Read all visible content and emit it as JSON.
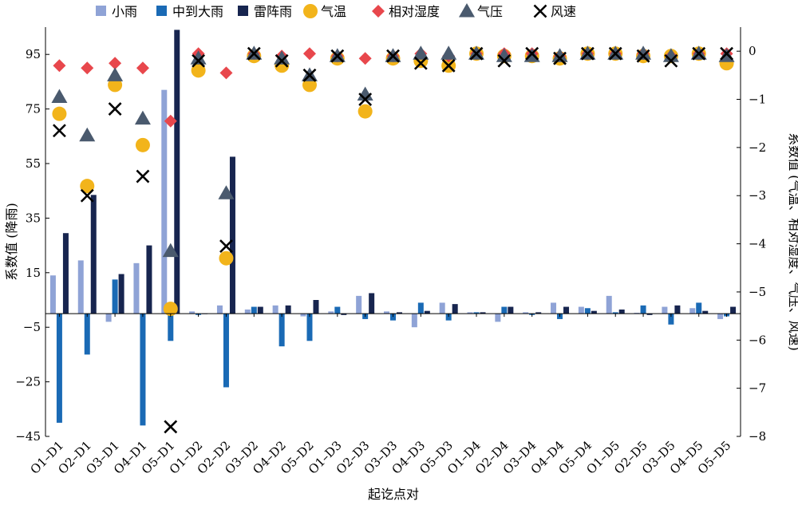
{
  "chart_data": {
    "type": "bar",
    "xlabel": "起讫点对",
    "ylabel_left": "系数值 (降雨)",
    "ylabel_right": "系数值 (气温、相对湿度、气压、风速)",
    "ylim_left": [
      -45,
      105
    ],
    "ylim_right": [
      -8,
      0.5
    ],
    "yticks_left": [
      -45,
      -25,
      -5,
      15,
      35,
      55,
      75,
      95
    ],
    "yticks_right": [
      -8,
      -7,
      -6,
      -5,
      -4,
      -3,
      -2,
      -1,
      0
    ],
    "yticks_left_labels": [
      "−45",
      "−25",
      "−5",
      "15",
      "35",
      "55",
      "75",
      "95"
    ],
    "yticks_right_labels": [
      "−8",
      "−7",
      "−6",
      "−5",
      "−4",
      "−3",
      "−2",
      "−1",
      "0"
    ],
    "legend_position": "top",
    "grid": false,
    "categories": [
      "O1–D1",
      "O2–D1",
      "O3–D1",
      "O4–D1",
      "O5–D1",
      "O1–D2",
      "O2–D2",
      "O3–D2",
      "O4–D2",
      "O5–D2",
      "O1–D3",
      "O2–D3",
      "O3–D3",
      "O4–D3",
      "O5–D3",
      "O1–D4",
      "O2–D4",
      "O3–D4",
      "O4–D4",
      "O5–D4",
      "O1–D5",
      "O2–D5",
      "O3–D5",
      "O4–D5",
      "O5–D5"
    ],
    "bar_series": [
      {
        "name": "小雨",
        "color": "#8fa3d6",
        "axis": "left",
        "values": [
          14,
          19.5,
          -3,
          18.5,
          82,
          0.8,
          3,
          1.5,
          3,
          -1,
          0.8,
          6.5,
          0.8,
          -5,
          4,
          0.5,
          -3,
          0.5,
          4,
          2.5,
          6.5,
          0.3,
          2.5,
          2,
          -2
        ]
      },
      {
        "name": "中到大雨",
        "color": "#1a6ab5",
        "axis": "left",
        "values": [
          -40,
          -15,
          12.5,
          -41,
          -10,
          -0.5,
          -27,
          2.5,
          -12,
          -10,
          2.5,
          -2,
          -2.5,
          4,
          -2.5,
          0.5,
          2.5,
          -0.5,
          -2,
          2,
          0.5,
          3,
          -4,
          4,
          -1
        ]
      },
      {
        "name": "雷阵雨",
        "color": "#17254f",
        "axis": "left",
        "values": [
          29.5,
          43.5,
          14.5,
          25,
          104,
          0,
          57.5,
          2.5,
          3,
          5,
          -0.5,
          7.5,
          0.5,
          1,
          3.5,
          0.5,
          2.5,
          0.5,
          2.5,
          1,
          1.5,
          -0.5,
          3,
          1,
          2.5
        ]
      }
    ],
    "marker_series": [
      {
        "name": "气温",
        "color": "#f2b41b",
        "marker": "circle",
        "axis": "right",
        "values": [
          -1.3,
          -2.8,
          -0.7,
          -1.95,
          -5.35,
          -0.4,
          -4.3,
          -0.1,
          -0.3,
          -0.7,
          -0.15,
          -1.25,
          -0.15,
          -0.2,
          -0.3,
          -0.05,
          -0.1,
          -0.1,
          -0.15,
          -0.05,
          -0.05,
          -0.1,
          -0.1,
          -0.05,
          -0.25
        ]
      },
      {
        "name": "相对湿度",
        "color": "#e8474c",
        "marker": "diamond",
        "axis": "right",
        "values": [
          -0.3,
          -0.35,
          -0.25,
          -0.35,
          -1.45,
          -0.05,
          -0.45,
          -0.05,
          -0.1,
          -0.05,
          -0.1,
          -0.15,
          -0.1,
          -0.05,
          -0.1,
          -0.05,
          -0.05,
          -0.05,
          -0.1,
          -0.05,
          -0.05,
          -0.05,
          -0.1,
          -0.05,
          -0.05
        ]
      },
      {
        "name": "气压",
        "color": "#4a5a6e",
        "marker": "triangle",
        "axis": "right",
        "values": [
          -0.95,
          -1.75,
          -0.5,
          -1.4,
          -4.15,
          -0.15,
          -2.95,
          -0.05,
          -0.15,
          -0.5,
          -0.1,
          -0.9,
          -0.1,
          -0.05,
          -0.05,
          -0.05,
          -0.1,
          -0.1,
          -0.1,
          -0.05,
          -0.05,
          -0.05,
          -0.1,
          -0.05,
          -0.1
        ]
      },
      {
        "name": "风速",
        "color": "#000000",
        "marker": "x",
        "axis": "right",
        "values": [
          -1.65,
          -3.0,
          -1.2,
          -2.6,
          -7.8,
          -0.2,
          -4.05,
          -0.05,
          -0.2,
          -0.5,
          -0.1,
          -1.0,
          -0.1,
          -0.25,
          -0.3,
          -0.05,
          -0.2,
          -0.05,
          -0.15,
          -0.05,
          -0.05,
          -0.1,
          -0.2,
          -0.05,
          -0.05
        ]
      }
    ]
  }
}
